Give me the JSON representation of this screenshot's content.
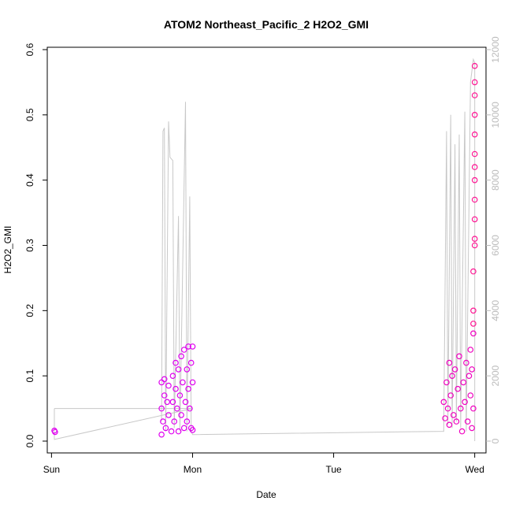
{
  "chart_data": {
    "type": "scatter",
    "title": "ATOM2 Northeast_Pacific_2 H2O2_GMI",
    "xlabel": "Date",
    "ylabel": "H2O2_GMI",
    "x_ticks": [
      "Sun",
      "Mon",
      "Tue",
      "Wed"
    ],
    "xlim_days": [
      -0.03,
      3.08
    ],
    "ylim": [
      0,
      0.6
    ],
    "y_ticks": [
      "0.0",
      "0.1",
      "0.2",
      "0.3",
      "0.4",
      "0.5",
      "0.6"
    ],
    "y2lim": [
      0,
      12000
    ],
    "y2_ticks": [
      "0",
      "2000",
      "4000",
      "6000",
      "8000",
      "10000",
      "12000"
    ],
    "grid": false,
    "legend": "none",
    "colors": {
      "points_early": "#e000f0",
      "points_mid": "#f000c0",
      "points_late": "#ff1493",
      "altitude_line": "#c8c8c8",
      "axis": "#000000",
      "right_axis": "#bbbbbb"
    },
    "series": [
      {
        "points": [
          [
            0.02,
            0.016
          ],
          [
            0.025,
            0.014
          ],
          [
            0.78,
            0.01
          ],
          [
            0.78,
            0.05
          ],
          [
            0.78,
            0.09
          ],
          [
            0.79,
            0.03
          ],
          [
            0.8,
            0.07
          ],
          [
            0.8,
            0.095
          ],
          [
            0.81,
            0.02
          ],
          [
            0.82,
            0.06
          ],
          [
            0.83,
            0.04
          ],
          [
            0.83,
            0.085
          ],
          [
            0.85,
            0.015
          ],
          [
            0.86,
            0.06
          ],
          [
            0.86,
            0.1
          ],
          [
            0.87,
            0.03
          ],
          [
            0.88,
            0.08
          ],
          [
            0.88,
            0.12
          ],
          [
            0.89,
            0.05
          ],
          [
            0.9,
            0.015
          ],
          [
            0.9,
            0.11
          ],
          [
            0.91,
            0.07
          ],
          [
            0.92,
            0.13
          ],
          [
            0.92,
            0.04
          ],
          [
            0.93,
            0.09
          ],
          [
            0.94,
            0.02
          ],
          [
            0.94,
            0.14
          ],
          [
            0.95,
            0.06
          ],
          [
            0.96,
            0.11
          ],
          [
            0.96,
            0.03
          ],
          [
            0.97,
            0.145
          ],
          [
            0.97,
            0.08
          ],
          [
            0.98,
            0.05
          ],
          [
            0.99,
            0.12
          ],
          [
            0.99,
            0.02
          ],
          [
            1.0,
            0.145
          ],
          [
            1.0,
            0.09
          ],
          [
            1.0,
            0.017
          ],
          [
            2.78,
            0.06
          ],
          [
            2.79,
            0.035
          ],
          [
            2.8,
            0.09
          ],
          [
            2.81,
            0.05
          ],
          [
            2.82,
            0.12
          ],
          [
            2.82,
            0.025
          ],
          [
            2.83,
            0.07
          ],
          [
            2.84,
            0.1
          ],
          [
            2.85,
            0.04
          ],
          [
            2.86,
            0.11
          ],
          [
            2.87,
            0.03
          ],
          [
            2.88,
            0.08
          ],
          [
            2.89,
            0.13
          ],
          [
            2.9,
            0.05
          ],
          [
            2.91,
            0.015
          ],
          [
            2.92,
            0.09
          ],
          [
            2.93,
            0.06
          ],
          [
            2.94,
            0.12
          ],
          [
            2.95,
            0.03
          ],
          [
            2.96,
            0.1
          ],
          [
            2.97,
            0.14
          ],
          [
            2.97,
            0.07
          ],
          [
            2.98,
            0.11
          ],
          [
            2.98,
            0.02
          ],
          [
            2.99,
            0.165
          ],
          [
            2.99,
            0.05
          ],
          [
            2.99,
            0.18
          ],
          [
            2.99,
            0.2
          ],
          [
            2.99,
            0.26
          ],
          [
            3.0,
            0.3
          ],
          [
            3.0,
            0.31
          ],
          [
            3.0,
            0.34
          ],
          [
            3.0,
            0.37
          ],
          [
            3.0,
            0.4
          ],
          [
            3.0,
            0.42
          ],
          [
            3.0,
            0.44
          ],
          [
            3.0,
            0.47
          ],
          [
            3.0,
            0.5
          ],
          [
            3.0,
            0.53
          ],
          [
            3.0,
            0.55
          ],
          [
            3.0,
            0.575
          ]
        ]
      }
    ],
    "altitude_line": [
      [
        0.02,
        1000
      ],
      [
        0.02,
        50
      ],
      [
        1.0,
        1000
      ],
      [
        0.02,
        1000
      ],
      [
        0.78,
        1000
      ],
      [
        0.78,
        600
      ],
      [
        0.79,
        9500
      ],
      [
        0.8,
        9600
      ],
      [
        0.81,
        300
      ],
      [
        0.83,
        9800
      ],
      [
        0.84,
        8700
      ],
      [
        0.86,
        8600
      ],
      [
        0.87,
        400
      ],
      [
        0.9,
        6900
      ],
      [
        0.91,
        300
      ],
      [
        0.95,
        10400
      ],
      [
        0.96,
        300
      ],
      [
        0.98,
        7500
      ],
      [
        0.99,
        300
      ],
      [
        1.0,
        200
      ],
      [
        2.78,
        300
      ],
      [
        2.8,
        9500
      ],
      [
        2.81,
        500
      ],
      [
        2.83,
        10000
      ],
      [
        2.84,
        400
      ],
      [
        2.86,
        9100
      ],
      [
        2.87,
        600
      ],
      [
        2.89,
        9400
      ],
      [
        2.9,
        400
      ],
      [
        2.93,
        10100
      ],
      [
        2.94,
        300
      ],
      [
        2.97,
        11000
      ],
      [
        2.99,
        11700
      ],
      [
        3.0,
        11600
      ],
      [
        3.0,
        0
      ]
    ]
  }
}
